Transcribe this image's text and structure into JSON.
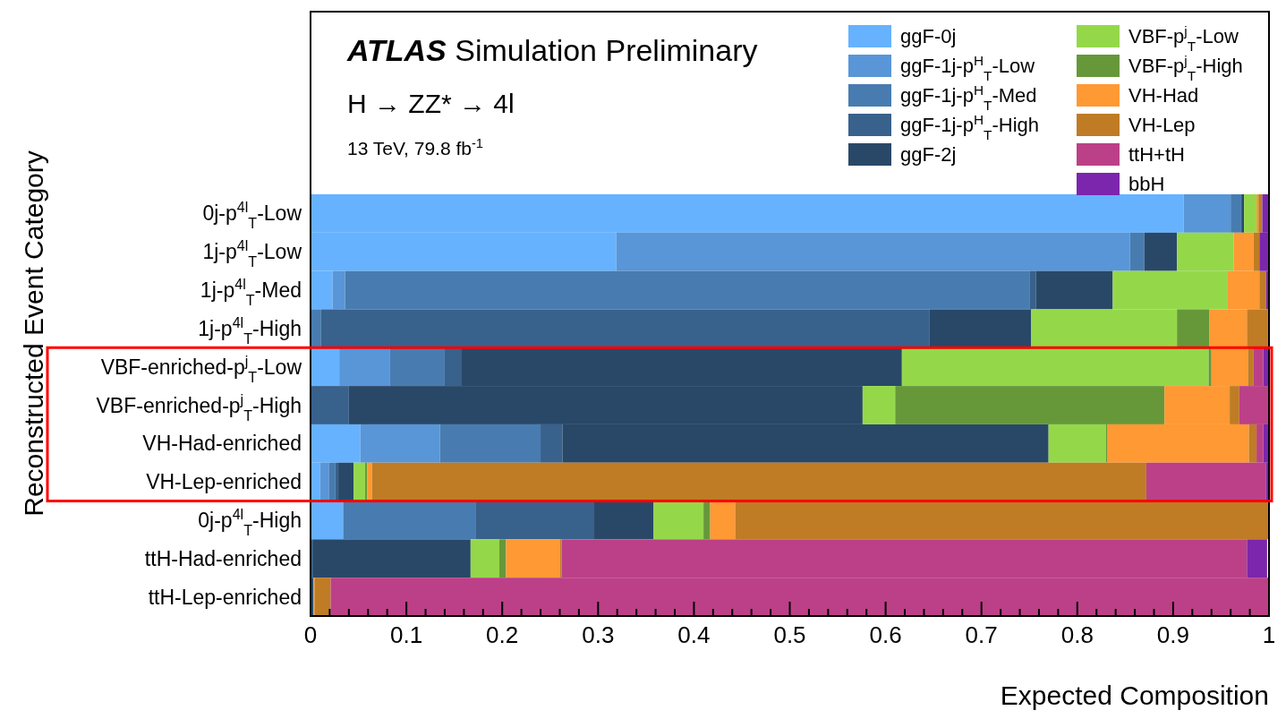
{
  "chart_data": {
    "type": "bar",
    "orientation": "horizontal",
    "stacked": true,
    "title": "ATLAS Simulation Preliminary",
    "subtitle": "H → ZZ* → 4l",
    "annotations": [
      "13 TeV, 79.8 fb$^{-1}$"
    ],
    "xlabel": "Expected Composition",
    "ylabel": "Reconstructed Event Category",
    "categories": [
      "0j-p$^{4l}$$_{T}$-Low",
      "1j-p$^{4l}$$_{T}$-Low",
      "1j-p$^{4l}$$_{T}$-Med",
      "1j-p$^{4l}$$_{T}$-High",
      "VBF-enriched-p$^{j}$$_{T}$-Low",
      "VBF-enriched-p$^{j}$$_{T}$-High",
      "VH-Had-enriched",
      "VH-Lep-enriched",
      "0j-p$^{4l}$$_{T}$-High",
      "ttH-Had-enriched",
      "ttH-Lep-enriched"
    ],
    "xlim": [
      0,
      1
    ],
    "xticks": [
      0,
      0.1,
      0.2,
      0.3,
      0.4,
      0.5,
      0.6,
      0.7,
      0.8,
      0.9,
      1
    ],
    "legend": "top right",
    "series": [
      {
        "name": "ggF-0j",
        "color": "#66b2ff",
        "values": [
          0.911,
          0.319,
          0.023,
          0,
          0.03,
          0,
          0.052,
          0.01,
          0.034,
          null,
          0
        ]
      },
      {
        "name": "ggF-1j-p$^{H}$$_{T}$-Low",
        "color": "#5896d8",
        "values": [
          0.049,
          0.536,
          0.013,
          0,
          0.053,
          0,
          0.083,
          0.009,
          0,
          0,
          0
        ]
      },
      {
        "name": "ggF-1j-p$^{H}$$_{T}$-Med",
        "color": "#487cb0",
        "values": [
          0.011,
          0.015,
          0.714,
          0.011,
          0.057,
          0,
          0.105,
          0.007,
          0.138,
          0,
          0
        ]
      },
      {
        "name": "ggF-1j-p$^{H}$$_{T}$-High",
        "color": "#38618c",
        "values": [
          0.001,
          0,
          0.007,
          0.635,
          0.017,
          0.04,
          0.023,
          0.003,
          0.124,
          0.002,
          0
        ]
      },
      {
        "name": "ggF-2j",
        "color": "#294868",
        "values": [
          0.002,
          0.034,
          0.08,
          0.106,
          0.46,
          0.536,
          0.507,
          0.016,
          0.062,
          0.165,
          0.003
        ]
      },
      {
        "name": "VBF-p$^{j}$$_{T}$-Low",
        "color": "#94d84a",
        "values": [
          0.013,
          0.059,
          0.12,
          0.152,
          0.32,
          0.034,
          0.06,
          0.012,
          0.052,
          0.03,
          0
        ]
      },
      {
        "name": "VBF-p$^{j}$$_{T}$-High",
        "color": "#66983a",
        "values": [
          0,
          0,
          0,
          0.034,
          0.003,
          0.281,
          0.001,
          0.002,
          0.007,
          0.007,
          0
        ]
      },
      {
        "name": "VH-Had",
        "color": "#ff9933",
        "values": [
          0.002,
          0.021,
          0.033,
          0.039,
          0.038,
          0.068,
          0.148,
          0.005,
          0.026,
          0.056,
          0.001
        ]
      },
      {
        "name": "VH-Lep",
        "color": "#bf7c25",
        "values": [
          0.004,
          0.006,
          0.007,
          0.022,
          0.006,
          0.01,
          0.008,
          0.808,
          0.557,
          0.002,
          0.017
        ]
      },
      {
        "name": "ttH+tH",
        "color": "#bc4088",
        "values": [
          0,
          0,
          0,
          0,
          0.01,
          0.031,
          0.007,
          0.125,
          0,
          0.715,
          0.979
        ]
      },
      {
        "name": "bbH",
        "color": "#7b26ac",
        "values": [
          0.007,
          0.01,
          0.003,
          null,
          0.006,
          0,
          0.006,
          0.003,
          0,
          0.021,
          0
        ]
      }
    ]
  }
}
